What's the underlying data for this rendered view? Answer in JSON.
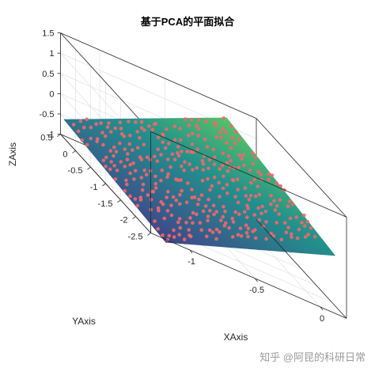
{
  "chart_data": {
    "type": "scatter",
    "title": "基于PCA的平面拟合",
    "xlabel": "XAxis",
    "ylabel": "YAxis",
    "zlabel": "ZAxis",
    "xticks": [
      "-1",
      "-0.5",
      "0"
    ],
    "xtick_values": [
      -1,
      -0.5,
      0
    ],
    "yticks": [
      "0.5",
      "0",
      "-0.5",
      "-1",
      "-1.5",
      "-2",
      "-2.5"
    ],
    "ytick_values": [
      0.5,
      0,
      -0.5,
      -1,
      -1.5,
      -2,
      -2.5
    ],
    "zticks": [
      "1.5",
      "1",
      "0.5",
      "0",
      "-0.5",
      "-1"
    ],
    "ztick_values": [
      1.5,
      1,
      0.5,
      0,
      -0.5,
      -1
    ],
    "xlim": [
      -1.3,
      0.2
    ],
    "ylim": [
      -2.5,
      0.5
    ],
    "zlim": [
      -1,
      1.5
    ],
    "grid": true,
    "colormap": "viridis",
    "plane_corners_xyz": [
      [
        -1.3,
        0.4,
        -0.55
      ],
      [
        -0.05,
        0.4,
        1.25
      ],
      [
        0.15,
        -2.35,
        0.35
      ],
      [
        -1.15,
        -2.35,
        -1.15
      ]
    ],
    "point_color": "#f0676b",
    "point_series": {
      "u_steps": 20,
      "v_steps": 22,
      "description_free": true
    },
    "colors": {
      "viridis": [
        "#440154",
        "#3b528b",
        "#21918c",
        "#5ec962",
        "#fde725"
      ],
      "points": "#f0676b"
    }
  },
  "watermark": {
    "text": "知乎 @阿昆的科研日常"
  }
}
